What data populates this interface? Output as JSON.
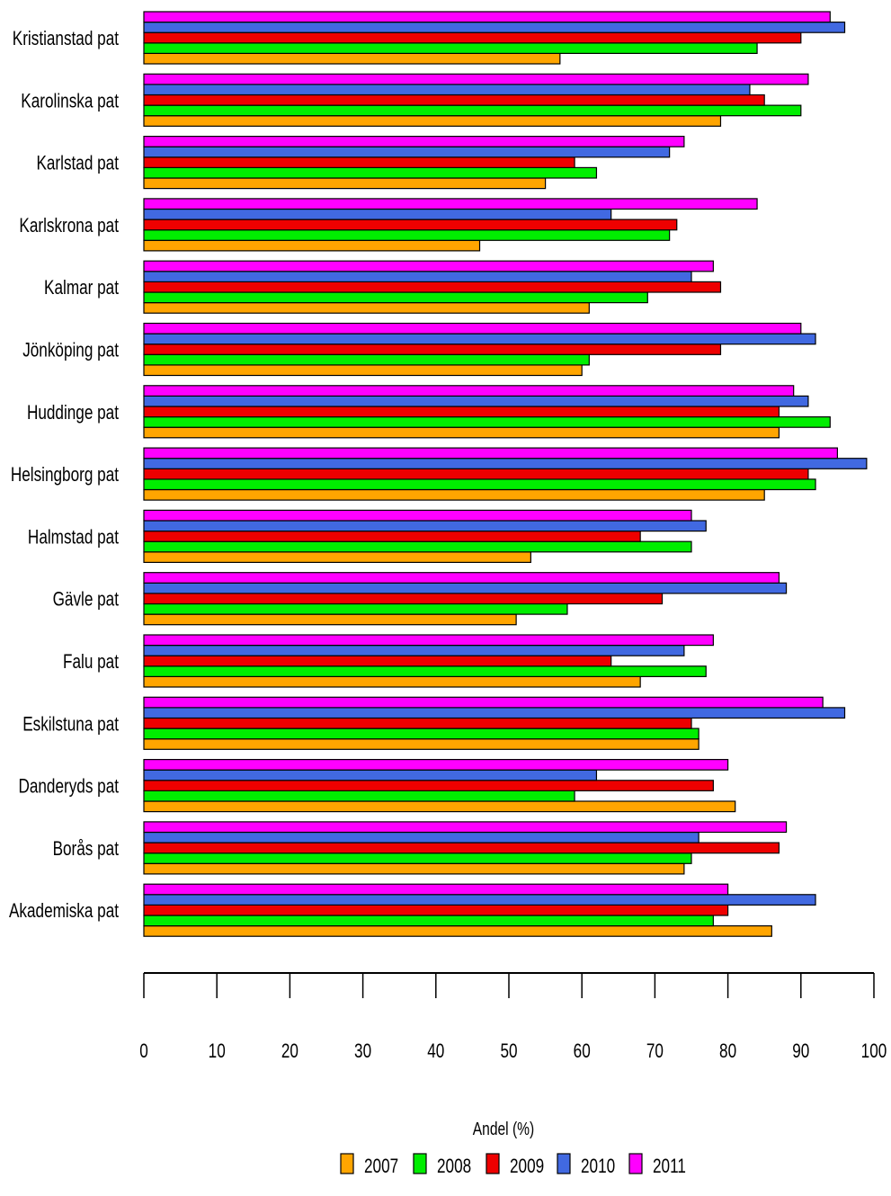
{
  "chart_data": {
    "type": "bar",
    "orientation": "horizontal",
    "categories": [
      "Akademiska pat",
      "Borås pat",
      "Danderyds pat",
      "Eskilstuna pat",
      "Falu pat",
      "Gävle pat",
      "Halmstad pat",
      "Helsingborg pat",
      "Huddinge pat",
      "Jönköping pat",
      "Kalmar pat",
      "Karlskrona pat",
      "Karlstad pat",
      "Karolinska pat",
      "Kristianstad pat"
    ],
    "series": [
      {
        "name": "2007",
        "color": "#FFA500",
        "values": [
          86,
          74,
          81,
          76,
          68,
          51,
          53,
          85,
          87,
          60,
          61,
          46,
          55,
          79,
          57
        ]
      },
      {
        "name": "2008",
        "color": "#00EE00",
        "values": [
          78,
          75,
          59,
          76,
          77,
          58,
          75,
          92,
          94,
          61,
          69,
          72,
          62,
          90,
          84
        ]
      },
      {
        "name": "2009",
        "color": "#EE0000",
        "values": [
          80,
          87,
          78,
          75,
          64,
          71,
          68,
          91,
          87,
          79,
          79,
          73,
          59,
          85,
          90
        ]
      },
      {
        "name": "2010",
        "color": "#4169E1",
        "values": [
          92,
          76,
          62,
          96,
          74,
          88,
          77,
          99,
          91,
          92,
          75,
          64,
          72,
          83,
          96
        ]
      },
      {
        "name": "2011",
        "color": "#FF00FF",
        "values": [
          80,
          88,
          80,
          93,
          78,
          87,
          75,
          95,
          89,
          90,
          78,
          84,
          74,
          91,
          94
        ]
      }
    ],
    "xlabel": "Andel (%)",
    "xlim": [
      0,
      100
    ],
    "xticks": [
      "0",
      "10",
      "20",
      "30",
      "40",
      "50",
      "60",
      "70",
      "80",
      "90",
      "100"
    ],
    "grid": false,
    "legend_position": "bottom"
  }
}
